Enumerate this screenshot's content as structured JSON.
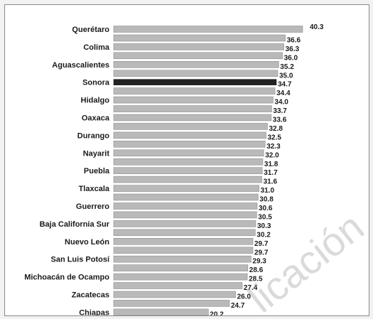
{
  "watermark": "licación",
  "colors": {
    "bar": "#b9b9b9",
    "bar_stroke": "#8f8f8f",
    "highlight": "#222222"
  },
  "chart_data": {
    "type": "bar",
    "orientation": "horizontal",
    "highlight_index": 6,
    "xlim": [
      0,
      40.3
    ],
    "grid": false,
    "categories": [
      "Querétaro",
      "",
      "Colima",
      "",
      "Aguascalientes",
      "",
      "Sonora",
      "",
      "Hidalgo",
      "",
      "Oaxaca",
      "",
      "Durango",
      "",
      "Nayarit",
      "",
      "Puebla",
      "",
      "Tlaxcala",
      "",
      "Guerrero",
      "",
      "Baja California Sur",
      "",
      "Nuevo León",
      "",
      "San Luis Potosí",
      "",
      "Michoacán de Ocampo",
      "",
      "Zacatecas",
      "",
      "Chiapas"
    ],
    "values": [
      40.3,
      36.6,
      36.3,
      36.0,
      35.2,
      35.0,
      34.7,
      34.4,
      34.0,
      33.7,
      33.6,
      32.8,
      32.5,
      32.3,
      32.0,
      31.8,
      31.7,
      31.6,
      31.0,
      30.8,
      30.6,
      30.5,
      30.3,
      30.2,
      29.7,
      29.7,
      29.3,
      28.6,
      28.5,
      27.4,
      26.0,
      24.7,
      20.2
    ],
    "value_labels": [
      "40.3",
      "36.6",
      "36.3",
      "36.0",
      "35.2",
      "35.0",
      "34.7",
      "34.4",
      "34.0",
      "33.7",
      "33.6",
      "32.8",
      "32.5",
      "32.3",
      "32.0",
      "31.8",
      "31.7",
      "31.6",
      "31.0",
      "30.8",
      "30.6",
      "30.5",
      "30.3",
      "30.2",
      "29.7",
      "29.7",
      "29.3",
      "28.6",
      "28.5",
      "27.4",
      "26.0",
      "24.7",
      "20.2"
    ]
  }
}
